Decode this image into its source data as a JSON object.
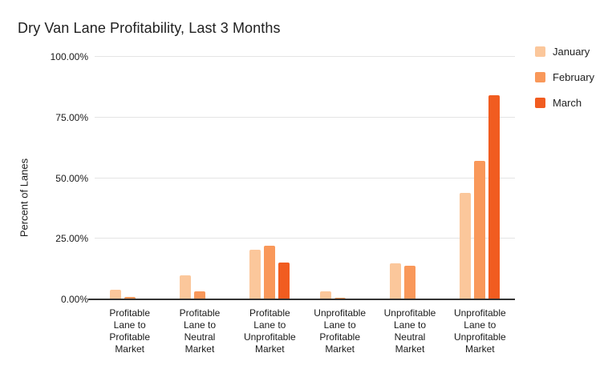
{
  "chart_data": {
    "type": "bar",
    "title": "Dry Van Lane Profitability, Last 3 Months",
    "xlabel": "",
    "ylabel": "Percent of Lanes",
    "ylim": [
      0,
      100
    ],
    "yticks": [
      0,
      25,
      50,
      75,
      100
    ],
    "ytick_labels": [
      "0.00%",
      "25.00%",
      "50.00%",
      "75.00%",
      "100.00%"
    ],
    "grid": true,
    "legend_position": "top-right",
    "background_color": "#ffffff",
    "gridline_color": "#e4e4e4",
    "baseline_color": "#333333",
    "categories": [
      "Profitable\nLane to\nProfitable\nMarket",
      "Profitable\nLane to\nNeutral\nMarket",
      "Profitable\nLane to\nUnprofitable\nMarket",
      "Unprofitable\nLane to\nProfitable\nMarket",
      "Unprofitable\nLane to\nNeutral\nMarket",
      "Unprofitable\nLane to\nUnprofitable\nMarket"
    ],
    "series": [
      {
        "name": "January",
        "color": "#FBC79B",
        "values": [
          4.0,
          10.0,
          20.5,
          3.4,
          15.0,
          44.0
        ]
      },
      {
        "name": "February",
        "color": "#F9985A",
        "values": [
          1.1,
          3.2,
          22.0,
          0.8,
          13.8,
          57.0
        ]
      },
      {
        "name": "March",
        "color": "#F15C20",
        "values": [
          0.0,
          0.4,
          15.2,
          0.0,
          0.0,
          84.0
        ]
      }
    ]
  }
}
